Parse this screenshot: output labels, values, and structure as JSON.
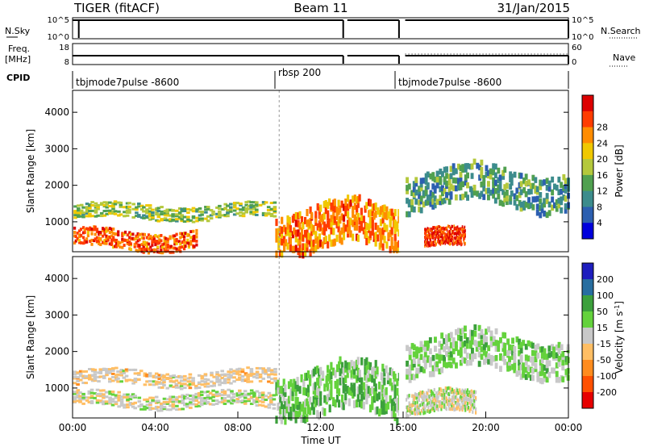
{
  "header": {
    "radar": "TIGER (fitACF)",
    "beam": "Beam 11",
    "date": "31/Jan/2015"
  },
  "status_panel": {
    "nsky_label": "N.Sky",
    "nsky_ticks": [
      "10^5",
      "10^0"
    ],
    "nsearch_label": "N.Search",
    "nsearch_ticks": [
      "10^5",
      "10^0"
    ],
    "freq_label": "Freq.",
    "freq_unit": "[MHz]",
    "freq_ticks": [
      "18",
      "8"
    ],
    "nave_label": "Nave",
    "nave_ticks": [
      "60",
      "0"
    ],
    "cpid_label": "CPID",
    "cpid_segments": [
      {
        "label": "tbjmode7pulse -8600",
        "start": "00:00",
        "end": "10:00"
      },
      {
        "label": "rbsp 200",
        "start": "10:00",
        "end": "16:00"
      },
      {
        "label": "tbjmode7pulse -8600",
        "start": "16:00",
        "end": "24:00"
      }
    ]
  },
  "chart_data": [
    {
      "type": "heatmap",
      "title": "",
      "quantity": "Power",
      "ylabel": "Slant Range [km]",
      "xlabel": "",
      "x_range_hours": [
        0,
        24
      ],
      "ylim": [
        180,
        4600
      ],
      "yticks": [
        1000,
        2000,
        3000,
        4000
      ],
      "data_gap_hours": [
        15.8,
        16.1
      ],
      "colorbar": {
        "label": "Power [dB]",
        "ticks": [
          4,
          8,
          12,
          16,
          20,
          24,
          28
        ],
        "range": [
          0,
          30
        ],
        "colors": [
          "#0000dc",
          "#2c5fb0",
          "#3c8c8c",
          "#50a050",
          "#b4c83c",
          "#f0c800",
          "#ff8c00",
          "#ff3c00",
          "#dc0000"
        ]
      },
      "echo_bands": [
        {
          "t_start": 0,
          "t_end": 9.8,
          "range_km": [
            1100,
            1500
          ],
          "power_db": 14
        },
        {
          "t_start": 0,
          "t_end": 6,
          "range_km": [
            300,
            800
          ],
          "power_db": 24
        },
        {
          "t_start": 9.8,
          "t_end": 15.8,
          "range_km": [
            300,
            1500
          ],
          "power_db": 22
        },
        {
          "t_start": 16.1,
          "t_end": 24,
          "range_km": [
            1500,
            2500
          ],
          "power_db": 10
        },
        {
          "t_start": 17,
          "t_end": 19,
          "range_km": [
            300,
            800
          ],
          "power_db": 26
        }
      ]
    },
    {
      "type": "heatmap",
      "title": "",
      "quantity": "Velocity",
      "ylabel": "Slant Range [km]",
      "xlabel": "Time UT",
      "x_range_hours": [
        0,
        24
      ],
      "xticks": [
        "00:00",
        "04:00",
        "08:00",
        "12:00",
        "16:00",
        "20:00",
        "00:00"
      ],
      "ylim": [
        180,
        4600
      ],
      "yticks": [
        1000,
        2000,
        3000,
        4000
      ],
      "data_gap_hours": [
        15.8,
        16.1
      ],
      "colorbar": {
        "label": "Velocity [m s^-1]",
        "ticks": [
          200,
          100,
          50,
          15,
          -15,
          -50,
          -100,
          -200
        ],
        "range": [
          -250,
          250
        ],
        "colors": [
          "#1e1ebe",
          "#286ea0",
          "#3ca03c",
          "#64d23c",
          "#c8c8c8",
          "#ffbe64",
          "#ff8c1e",
          "#ff5000",
          "#e60000"
        ]
      },
      "echo_bands": [
        {
          "t_start": 0,
          "t_end": 9.8,
          "range_km": [
            1100,
            1500
          ],
          "velocity": -30
        },
        {
          "t_start": 0,
          "t_end": 9.8,
          "range_km": [
            500,
            900
          ],
          "velocity": 0
        },
        {
          "t_start": 9.8,
          "t_end": 15.8,
          "range_km": [
            300,
            1600
          ],
          "velocity": 60
        },
        {
          "t_start": 16.1,
          "t_end": 24,
          "range_km": [
            1500,
            2500
          ],
          "velocity": 40
        },
        {
          "t_start": 16.1,
          "t_end": 19.5,
          "range_km": [
            300,
            900
          ],
          "velocity": 0
        }
      ]
    }
  ]
}
